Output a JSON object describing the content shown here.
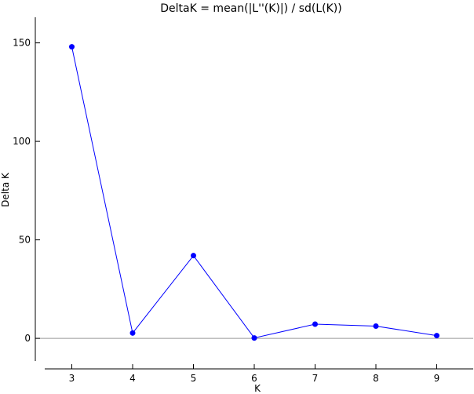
{
  "chart_data": {
    "type": "line",
    "title": "DeltaK = mean(|L''(K)|) / sd(L(K))",
    "xlabel": "K",
    "ylabel": "Delta K",
    "x": [
      3,
      4,
      5,
      6,
      7,
      8,
      9
    ],
    "series": [
      {
        "values": [
          148,
          2.7,
          42,
          0.2,
          7.2,
          6.2,
          1.4
        ]
      }
    ],
    "xlim": [
      2.4,
      9.6
    ],
    "ylim": [
      -15.5,
      163
    ],
    "xticks": [
      "3",
      "4",
      "5",
      "6",
      "7",
      "8",
      "9"
    ],
    "yticks": [
      "0",
      "50",
      "100",
      "150"
    ],
    "zero_line": true,
    "grid": false,
    "colors": {
      "series": "#0000ff",
      "zero_line": "#999999",
      "axes": "#000000"
    }
  }
}
